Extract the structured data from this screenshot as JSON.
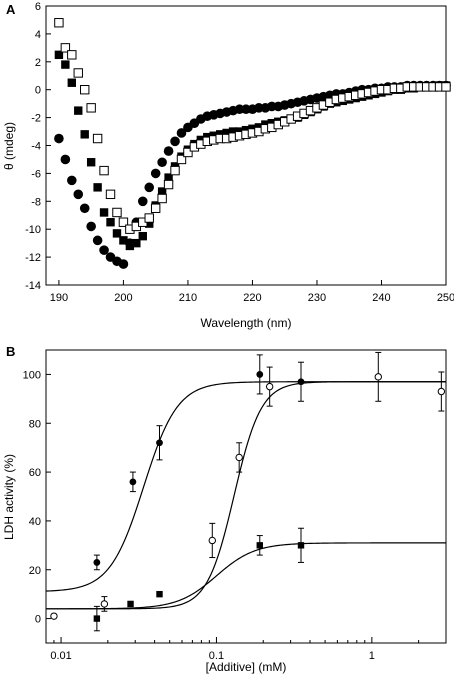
{
  "chart_data": [
    {
      "panel": "A",
      "type": "scatter",
      "title": "",
      "xlabel": "Wavelength (nm)",
      "ylabel": "θ (mdeg)",
      "xlim": [
        188,
        250
      ],
      "ylim": [
        -14,
        6
      ],
      "xticks": [
        190,
        200,
        210,
        220,
        230,
        240,
        250
      ],
      "yticks": [
        -14,
        -12,
        -10,
        -8,
        -6,
        -4,
        -2,
        0,
        2,
        4,
        6
      ],
      "grid": false,
      "series": [
        {
          "marker": "filled-circle",
          "x": [
            190,
            191,
            192,
            193,
            194,
            195,
            196,
            197,
            198,
            199,
            200,
            201,
            202,
            203,
            204,
            205,
            206,
            207,
            208,
            209,
            210,
            211,
            212,
            213,
            214,
            215,
            216,
            217,
            218,
            219,
            220,
            221,
            222,
            223,
            224,
            225,
            226,
            227,
            228,
            229,
            230,
            231,
            232,
            233,
            234,
            235,
            236,
            237,
            238,
            239,
            240,
            241,
            242,
            243,
            244,
            245,
            246,
            247,
            248,
            249,
            250
          ],
          "y": [
            -3.5,
            -5,
            -6.5,
            -7.5,
            -8.5,
            -9.8,
            -10.8,
            -11.5,
            -12,
            -12.3,
            -12.5,
            -11,
            -9.5,
            -8,
            -7,
            -6,
            -5.2,
            -4.4,
            -3.7,
            -3.1,
            -2.7,
            -2.4,
            -2.1,
            -1.9,
            -1.8,
            -1.7,
            -1.6,
            -1.5,
            -1.4,
            -1.4,
            -1.4,
            -1.3,
            -1.3,
            -1.2,
            -1.2,
            -1.1,
            -1.0,
            -0.9,
            -0.8,
            -0.7,
            -0.6,
            -0.5,
            -0.4,
            -0.3,
            -0.3,
            -0.2,
            -0.1,
            0,
            0,
            0.1,
            0.1,
            0.2,
            0.2,
            0.2,
            0.3,
            0.3,
            0.3,
            0.3,
            0.3,
            0.3,
            0.3
          ]
        },
        {
          "marker": "filled-square",
          "x": [
            190,
            191,
            192,
            193,
            194,
            195,
            196,
            197,
            198,
            199,
            200,
            201,
            202,
            203,
            204,
            205,
            206,
            207,
            208,
            209,
            210,
            211,
            212,
            213,
            214,
            215,
            216,
            217,
            218,
            219,
            220,
            221,
            222,
            223,
            224,
            225,
            226,
            227,
            228,
            229,
            230,
            231,
            232,
            233,
            234,
            235,
            236,
            237,
            238,
            239,
            240,
            241,
            242,
            243,
            244,
            245,
            246,
            247,
            248,
            249,
            250
          ],
          "y": [
            2.5,
            1.8,
            0.5,
            -1.5,
            -3.2,
            -5.2,
            -7,
            -8.8,
            -9.5,
            -10.3,
            -10.8,
            -11.2,
            -11,
            -10.5,
            -9.6,
            -8.3,
            -7.3,
            -6.3,
            -5.5,
            -4.8,
            -4.3,
            -3.9,
            -3.6,
            -3.4,
            -3.3,
            -3.2,
            -3.1,
            -3.0,
            -3.0,
            -2.9,
            -2.8,
            -2.7,
            -2.5,
            -2.4,
            -2.3,
            -2.2,
            -2.1,
            -2.0,
            -1.8,
            -1.6,
            -1.4,
            -1.2,
            -1.0,
            -0.9,
            -0.8,
            -0.7,
            -0.6,
            -0.5,
            -0.4,
            -0.3,
            -0.2,
            -0.1,
            0,
            0,
            0.1,
            0.1,
            0.2,
            0.2,
            0.2,
            0.3,
            0.3
          ]
        },
        {
          "marker": "open-square",
          "x": [
            190,
            191,
            192,
            193,
            194,
            195,
            196,
            197,
            198,
            199,
            200,
            201,
            202,
            203,
            204,
            205,
            206,
            207,
            208,
            209,
            210,
            211,
            212,
            213,
            214,
            215,
            216,
            217,
            218,
            219,
            220,
            221,
            222,
            223,
            224,
            225,
            226,
            227,
            228,
            229,
            230,
            231,
            232,
            233,
            234,
            235,
            236,
            237,
            238,
            239,
            240,
            241,
            242,
            243,
            244,
            245,
            246,
            247,
            248,
            249,
            250
          ],
          "y": [
            4.8,
            3.0,
            2.5,
            1.2,
            0,
            -1.3,
            -3.5,
            -5.8,
            -7.5,
            -8.8,
            -9.5,
            -10,
            -9.8,
            -9.5,
            -9.2,
            -8.5,
            -7.8,
            -6.8,
            -5.8,
            -5.0,
            -4.5,
            -4.1,
            -3.9,
            -3.7,
            -3.6,
            -3.5,
            -3.5,
            -3.4,
            -3.3,
            -3.2,
            -3.1,
            -3.0,
            -2.8,
            -2.7,
            -2.5,
            -2.3,
            -2.1,
            -1.9,
            -1.7,
            -1.5,
            -1.3,
            -1.1,
            -0.9,
            -0.7,
            -0.6,
            -0.5,
            -0.4,
            -0.3,
            -0.2,
            -0.1,
            0,
            0,
            0.1,
            0.1,
            0.2,
            0.2,
            0.2,
            0.2,
            0.2,
            0.2,
            0.2
          ]
        }
      ]
    },
    {
      "panel": "B",
      "type": "scatter",
      "title": "",
      "xlabel": "[Additive] (mM)",
      "ylabel": "LDH activity (%)",
      "xscale": "log",
      "xlim": [
        0.008,
        3
      ],
      "ylim": [
        -10,
        110
      ],
      "xticks": [
        0.01,
        0.1,
        1
      ],
      "xtick_labels": [
        "0.01",
        "0.1",
        "1"
      ],
      "yticks": [
        0,
        20,
        40,
        60,
        80,
        100
      ],
      "grid": false,
      "series": [
        {
          "marker": "filled-circle",
          "x": [
            0.017,
            0.029,
            0.043,
            0.19,
            0.35
          ],
          "y": [
            23,
            56,
            72,
            100,
            97
          ],
          "err": [
            3,
            4,
            7,
            8,
            8
          ],
          "fit": {
            "bottom": 11,
            "top": 97,
            "ec50": 0.034,
            "hill": 4
          }
        },
        {
          "marker": "open-circle",
          "x": [
            0.009,
            0.019,
            0.094,
            0.14,
            0.22,
            1.1,
            2.8
          ],
          "y": [
            1,
            6,
            32,
            66,
            95,
            99,
            93
          ],
          "err": [
            0,
            3,
            7,
            6,
            8,
            10,
            8
          ],
          "fit": {
            "bottom": 4,
            "top": 97,
            "ec50": 0.13,
            "hill": 5
          }
        },
        {
          "marker": "filled-square",
          "x": [
            0.017,
            0.028,
            0.043,
            0.19,
            0.35
          ],
          "y": [
            0,
            6,
            10,
            30,
            30
          ],
          "err": [
            5,
            0,
            0,
            4,
            7
          ],
          "fit": {
            "bottom": 4,
            "top": 31,
            "ec50": 0.1,
            "hill": 3.5
          }
        }
      ]
    }
  ]
}
